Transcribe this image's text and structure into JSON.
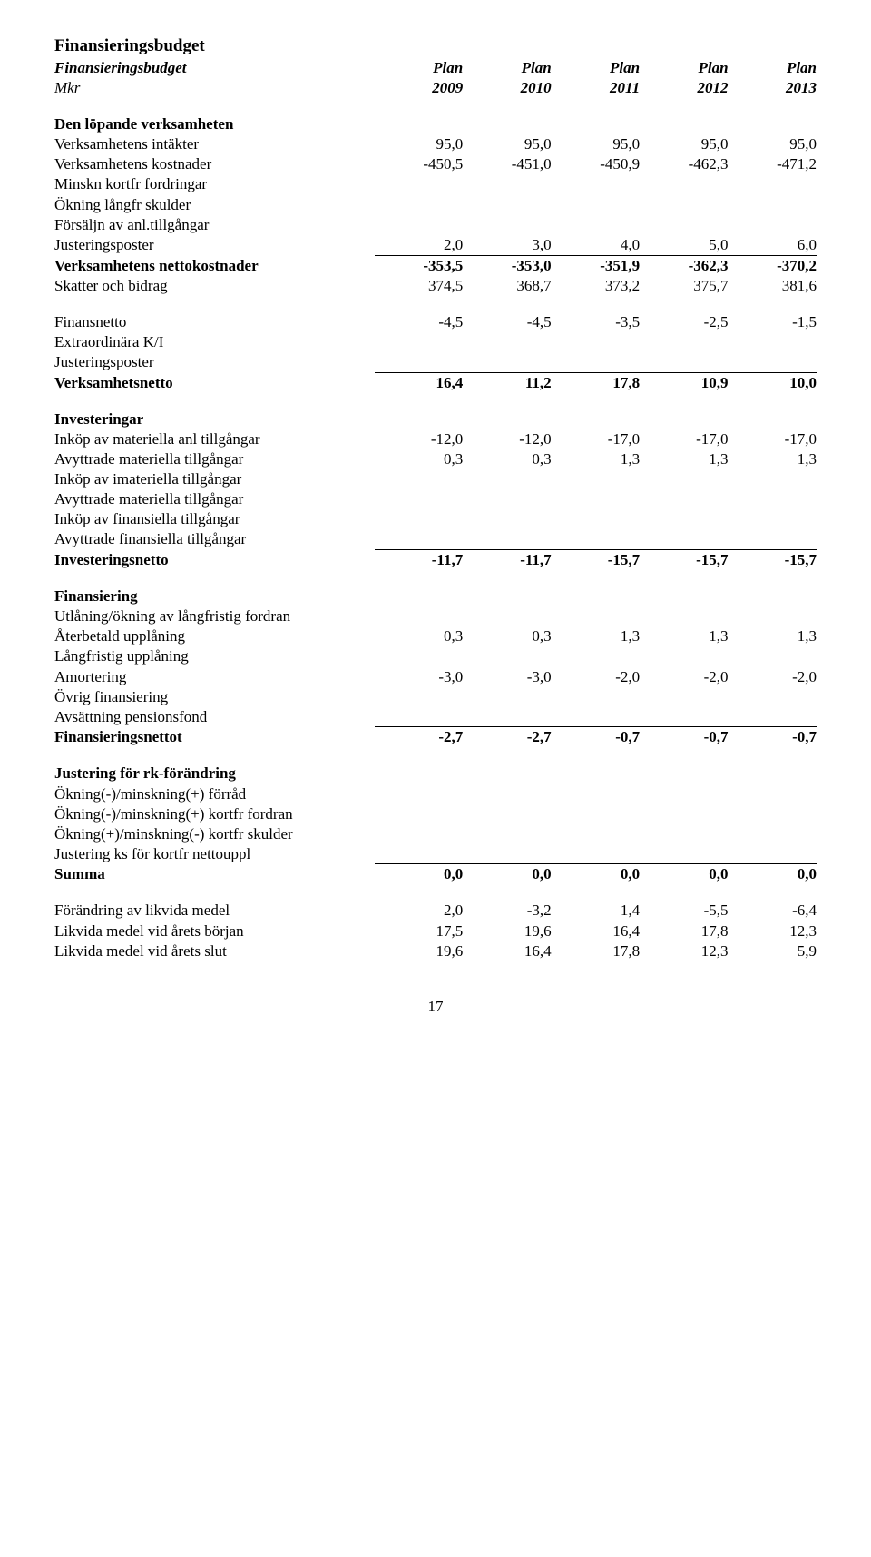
{
  "title": "Finansieringsbudget",
  "header": {
    "label_line1": "Finansieringsbudget",
    "label_line2": "Mkr",
    "col_top": [
      "Plan",
      "Plan",
      "Plan",
      "Plan",
      "Plan"
    ],
    "col_years": [
      "2009",
      "2010",
      "2011",
      "2012",
      "2013"
    ]
  },
  "sections": {
    "s1_title": "Den löpande verksamheten",
    "s1_rows": [
      {
        "label": "Verksamhetens intäkter",
        "v": [
          "95,0",
          "95,0",
          "95,0",
          "95,0",
          "95,0"
        ]
      },
      {
        "label": "Verksamhetens kostnader",
        "v": [
          "-450,5",
          "-451,0",
          "-450,9",
          "-462,3",
          "-471,2"
        ]
      },
      {
        "label": "Minskn kortfr fordringar",
        "v": [
          "",
          "",
          "",
          "",
          ""
        ]
      },
      {
        "label": "Ökning långfr skulder",
        "v": [
          "",
          "",
          "",
          "",
          ""
        ]
      },
      {
        "label": "Försäljn av anl.tillgångar",
        "v": [
          "",
          "",
          "",
          "",
          ""
        ]
      },
      {
        "label": "Justeringsposter",
        "v": [
          "2,0",
          "3,0",
          "4,0",
          "5,0",
          "6,0"
        ]
      }
    ],
    "s1_sum1": {
      "label": "Verksamhetens nettokostnader",
      "v": [
        "-353,5",
        "-353,0",
        "-351,9",
        "-362,3",
        "-370,2"
      ]
    },
    "s1_tax": {
      "label": "Skatter och bidrag",
      "v": [
        "374,5",
        "368,7",
        "373,2",
        "375,7",
        "381,6"
      ]
    },
    "s1_rows2": [
      {
        "label": "Finansnetto",
        "v": [
          "-4,5",
          "-4,5",
          "-3,5",
          "-2,5",
          "-1,5"
        ]
      },
      {
        "label": "Extraordinära K/I",
        "v": [
          "",
          "",
          "",
          "",
          ""
        ]
      },
      {
        "label": "Justeringsposter",
        "v": [
          "",
          "",
          "",
          "",
          ""
        ]
      }
    ],
    "s1_sum2": {
      "label": "Verksamhetsnetto",
      "v": [
        "16,4",
        "11,2",
        "17,8",
        "10,9",
        "10,0"
      ]
    },
    "s2_title": "Investeringar",
    "s2_rows": [
      {
        "label": "Inköp av materiella anl tillgångar",
        "v": [
          "-12,0",
          "-12,0",
          "-17,0",
          "-17,0",
          "-17,0"
        ]
      },
      {
        "label": "Avyttrade materiella tillgångar",
        "v": [
          "0,3",
          "0,3",
          "1,3",
          "1,3",
          "1,3"
        ]
      },
      {
        "label": "Inköp av imateriella tillgångar",
        "v": [
          "",
          "",
          "",
          "",
          ""
        ]
      },
      {
        "label": "Avyttrade materiella tillgångar",
        "v": [
          "",
          "",
          "",
          "",
          ""
        ]
      },
      {
        "label": "Inköp av finansiella tillgångar",
        "v": [
          "",
          "",
          "",
          "",
          ""
        ]
      },
      {
        "label": "Avyttrade finansiella tillgångar",
        "v": [
          "",
          "",
          "",
          "",
          ""
        ]
      }
    ],
    "s2_sum": {
      "label": "Investeringsnetto",
      "v": [
        "-11,7",
        "-11,7",
        "-15,7",
        "-15,7",
        "-15,7"
      ]
    },
    "s3_title": "Finansiering",
    "s3_rows": [
      {
        "label": "Utlåning/ökning av långfristig fordran",
        "v": [
          "",
          "",
          "",
          "",
          ""
        ]
      },
      {
        "label": "Återbetald upplåning",
        "v": [
          "0,3",
          "0,3",
          "1,3",
          "1,3",
          "1,3"
        ]
      },
      {
        "label": "Långfristig upplåning",
        "v": [
          "",
          "",
          "",
          "",
          ""
        ]
      },
      {
        "label": "Amortering",
        "v": [
          "-3,0",
          "-3,0",
          "-2,0",
          "-2,0",
          "-2,0"
        ]
      },
      {
        "label": "Övrig finansiering",
        "v": [
          "",
          "",
          "",
          "",
          ""
        ]
      },
      {
        "label": "Avsättning pensionsfond",
        "v": [
          "",
          "",
          "",
          "",
          ""
        ]
      }
    ],
    "s3_sum": {
      "label": "Finansieringsnettot",
      "v": [
        "-2,7",
        "-2,7",
        "-0,7",
        "-0,7",
        "-0,7"
      ]
    },
    "s4_title": "Justering för rk-förändring",
    "s4_rows": [
      {
        "label": "Ökning(-)/minskning(+) förråd",
        "v": [
          "",
          "",
          "",
          "",
          ""
        ]
      },
      {
        "label": "Ökning(-)/minskning(+) kortfr fordran",
        "v": [
          "",
          "",
          "",
          "",
          ""
        ]
      },
      {
        "label": "Ökning(+)/minskning(-) kortfr skulder",
        "v": [
          "",
          "",
          "",
          "",
          ""
        ]
      },
      {
        "label": "Justering ks för kortfr nettouppl",
        "v": [
          "",
          "",
          "",
          "",
          ""
        ]
      }
    ],
    "s4_sum": {
      "label": "Summa",
      "v": [
        "0,0",
        "0,0",
        "0,0",
        "0,0",
        "0,0"
      ]
    },
    "s5_rows": [
      {
        "label": "Förändring av likvida medel",
        "v": [
          "2,0",
          "-3,2",
          "1,4",
          "-5,5",
          "-6,4"
        ]
      },
      {
        "label": "Likvida medel vid årets början",
        "v": [
          "17,5",
          "19,6",
          "16,4",
          "17,8",
          "12,3"
        ]
      },
      {
        "label": "Likvida medel vid årets slut",
        "v": [
          "19,6",
          "16,4",
          "17,8",
          "12,3",
          "5,9"
        ]
      }
    ]
  },
  "page_number": "17"
}
